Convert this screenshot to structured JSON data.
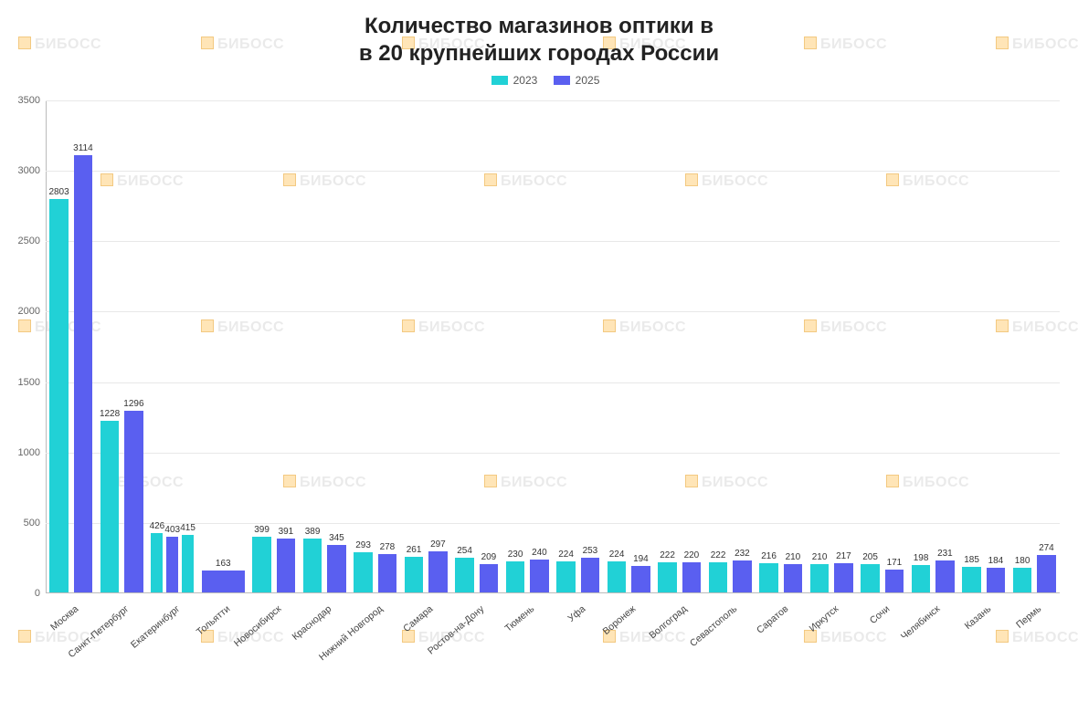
{
  "watermark_text": "БИБОСС",
  "chart": {
    "type": "bar",
    "title_line1": "Количество магазинов оптики в",
    "title_line2": "в 20 крупнейших городах России",
    "title_fontsize": 24,
    "title_color": "#222222",
    "legend": {
      "series1_label": "2023",
      "series2_label": "2025",
      "series1_color": "#21d1d6",
      "series2_color": "#5a5ff0"
    },
    "y_axis": {
      "min": 0,
      "max": 3500,
      "ticks": [
        0,
        500,
        1000,
        1500,
        2000,
        2500,
        3000,
        3500
      ],
      "label_fontsize": 11,
      "label_color": "#666666"
    },
    "grid_color": "#e8e8e8",
    "axis_line_color": "#bbbbbb",
    "background_color": "#ffffff",
    "bar_gap_ratio": 0.3,
    "value_label_fontsize": 10,
    "x_label_fontsize": 10.5,
    "x_label_rotation_deg": -40,
    "categories": [
      "Москва",
      "Санкт-Петербург",
      "Екатеринбург",
      "Тольятти",
      "Новосибирск",
      "Краснодар",
      "Нижний Новгород",
      "Самара",
      "Ростов-на-Дону",
      "Тюмень",
      "Уфа",
      "Воронеж",
      "Волгоград",
      "Севастополь",
      "Саратов",
      "Иркутск",
      "Сочи",
      "Челябинск",
      "Казань",
      "Пермь"
    ],
    "series": [
      {
        "name": "2023",
        "color": "#21d1d6",
        "values": [
          2803,
          1228,
          426,
          null,
          399,
          389,
          293,
          261,
          254,
          230,
          224,
          224,
          222,
          222,
          216,
          210,
          205,
          198,
          185,
          180
        ]
      },
      {
        "name": "2025",
        "color": "#5a5ff0",
        "values": [
          3114,
          1296,
          403,
          163,
          391,
          345,
          278,
          297,
          209,
          240,
          253,
          194,
          220,
          232,
          210,
          217,
          171,
          231,
          184,
          274
        ]
      }
    ],
    "series1_alt_bar": {
      "index": 2,
      "value": 415
    }
  }
}
